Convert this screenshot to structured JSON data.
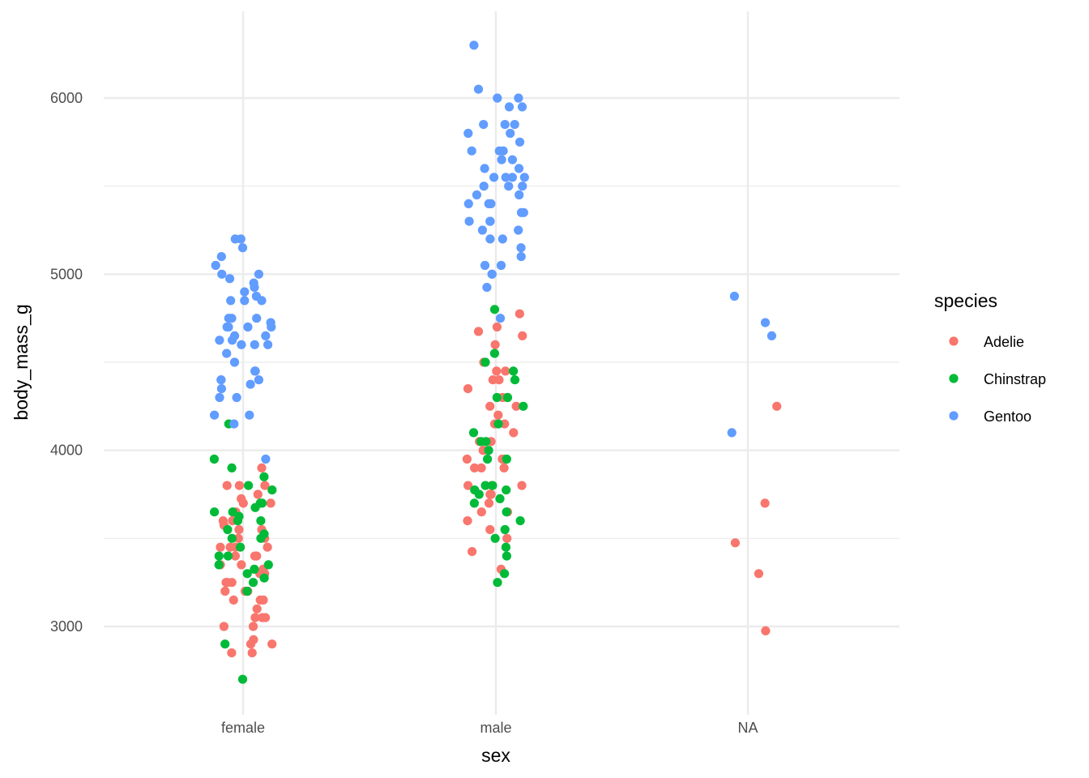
{
  "chart_data": {
    "type": "scatter",
    "xlabel": "sex",
    "ylabel": "body_mass_g",
    "categories": [
      "female",
      "male",
      "NA"
    ],
    "y_ticks": [
      "3000",
      "4000",
      "5000",
      "6000"
    ],
    "ylim": [
      2500,
      6500
    ],
    "grid": true,
    "legend": {
      "title": "species",
      "position": "right",
      "entries": [
        "Adelie",
        "Chinstrap",
        "Gentoo"
      ]
    },
    "colors": {
      "Adelie": "#F8766D",
      "Chinstrap": "#00BA38",
      "Gentoo": "#619CFF"
    },
    "jitter_note": "horizontal jitter within each sex category",
    "series": [
      {
        "name": "Adelie",
        "points": [
          [
            "female",
            2850
          ],
          [
            "female",
            2850
          ],
          [
            "female",
            2900
          ],
          [
            "female",
            2900
          ],
          [
            "female",
            2925
          ],
          [
            "female",
            3000
          ],
          [
            "female",
            3000
          ],
          [
            "female",
            3050
          ],
          [
            "female",
            3050
          ],
          [
            "female",
            3050
          ],
          [
            "female",
            3100
          ],
          [
            "female",
            3150
          ],
          [
            "female",
            3150
          ],
          [
            "female",
            3200
          ],
          [
            "female",
            3200
          ],
          [
            "female",
            3250
          ],
          [
            "female",
            3250
          ],
          [
            "female",
            3300
          ],
          [
            "female",
            3300
          ],
          [
            "female",
            3325
          ],
          [
            "female",
            3350
          ],
          [
            "female",
            3350
          ],
          [
            "female",
            3400
          ],
          [
            "female",
            3400
          ],
          [
            "female",
            3450
          ],
          [
            "female",
            3450
          ],
          [
            "female",
            3450
          ],
          [
            "female",
            3500
          ],
          [
            "female",
            3500
          ],
          [
            "female",
            3550
          ],
          [
            "female",
            3550
          ],
          [
            "female",
            3575
          ],
          [
            "female",
            3600
          ],
          [
            "female",
            3600
          ],
          [
            "female",
            3650
          ],
          [
            "female",
            3700
          ],
          [
            "female",
            3700
          ],
          [
            "female",
            3725
          ],
          [
            "female",
            3750
          ],
          [
            "female",
            3800
          ],
          [
            "female",
            3800
          ],
          [
            "female",
            3800
          ],
          [
            "female",
            3900
          ],
          [
            "female",
            3250
          ],
          [
            "female",
            3200
          ],
          [
            "female",
            3150
          ],
          [
            "female",
            3400
          ],
          [
            "female",
            3450
          ],
          [
            "male",
            3325
          ],
          [
            "male",
            3425
          ],
          [
            "male",
            3500
          ],
          [
            "male",
            3550
          ],
          [
            "male",
            3650
          ],
          [
            "male",
            3650
          ],
          [
            "male",
            3700
          ],
          [
            "male",
            3750
          ],
          [
            "male",
            3750
          ],
          [
            "male",
            3800
          ],
          [
            "male",
            3800
          ],
          [
            "male",
            3800
          ],
          [
            "male",
            3900
          ],
          [
            "male",
            3900
          ],
          [
            "male",
            3950
          ],
          [
            "male",
            3950
          ],
          [
            "male",
            4000
          ],
          [
            "male",
            4000
          ],
          [
            "male",
            4050
          ],
          [
            "male",
            4050
          ],
          [
            "male",
            4100
          ],
          [
            "male",
            4150
          ],
          [
            "male",
            4200
          ],
          [
            "male",
            4250
          ],
          [
            "male",
            4300
          ],
          [
            "male",
            4300
          ],
          [
            "male",
            4350
          ],
          [
            "male",
            4400
          ],
          [
            "male",
            4400
          ],
          [
            "male",
            4450
          ],
          [
            "male",
            4450
          ],
          [
            "male",
            4500
          ],
          [
            "male",
            4600
          ],
          [
            "male",
            4650
          ],
          [
            "male",
            4675
          ],
          [
            "male",
            4700
          ],
          [
            "male",
            4775
          ],
          [
            "male",
            3950
          ],
          [
            "male",
            3600
          ],
          [
            "male",
            3900
          ],
          [
            "male",
            4150
          ],
          [
            "male",
            4250
          ],
          [
            "NA",
            2975
          ],
          [
            "NA",
            3300
          ],
          [
            "NA",
            3475
          ],
          [
            "NA",
            3700
          ],
          [
            "NA",
            4250
          ]
        ]
      },
      {
        "name": "Chinstrap",
        "points": [
          [
            "female",
            2700
          ],
          [
            "female",
            2900
          ],
          [
            "female",
            3200
          ],
          [
            "female",
            3250
          ],
          [
            "female",
            3275
          ],
          [
            "female",
            3300
          ],
          [
            "female",
            3325
          ],
          [
            "female",
            3350
          ],
          [
            "female",
            3350
          ],
          [
            "female",
            3400
          ],
          [
            "female",
            3400
          ],
          [
            "female",
            3450
          ],
          [
            "female",
            3500
          ],
          [
            "female",
            3500
          ],
          [
            "female",
            3525
          ],
          [
            "female",
            3550
          ],
          [
            "female",
            3600
          ],
          [
            "female",
            3600
          ],
          [
            "female",
            3625
          ],
          [
            "female",
            3650
          ],
          [
            "female",
            3650
          ],
          [
            "female",
            3675
          ],
          [
            "female",
            3700
          ],
          [
            "female",
            3700
          ],
          [
            "female",
            3775
          ],
          [
            "female",
            3800
          ],
          [
            "female",
            3850
          ],
          [
            "female",
            3900
          ],
          [
            "female",
            3950
          ],
          [
            "female",
            4150
          ],
          [
            "male",
            3250
          ],
          [
            "male",
            3300
          ],
          [
            "male",
            3400
          ],
          [
            "male",
            3450
          ],
          [
            "male",
            3500
          ],
          [
            "male",
            3550
          ],
          [
            "male",
            3600
          ],
          [
            "male",
            3650
          ],
          [
            "male",
            3700
          ],
          [
            "male",
            3725
          ],
          [
            "male",
            3750
          ],
          [
            "male",
            3775
          ],
          [
            "male",
            3800
          ],
          [
            "male",
            3800
          ],
          [
            "male",
            3950
          ],
          [
            "male",
            3950
          ],
          [
            "male",
            4000
          ],
          [
            "male",
            4050
          ],
          [
            "male",
            4050
          ],
          [
            "male",
            4100
          ],
          [
            "male",
            4150
          ],
          [
            "male",
            4250
          ],
          [
            "male",
            4300
          ],
          [
            "male",
            4300
          ],
          [
            "male",
            4400
          ],
          [
            "male",
            4450
          ],
          [
            "male",
            4500
          ],
          [
            "male",
            4550
          ],
          [
            "male",
            4800
          ],
          [
            "male",
            3775
          ]
        ]
      },
      {
        "name": "Gentoo",
        "points": [
          [
            "female",
            3950
          ],
          [
            "female",
            4150
          ],
          [
            "female",
            4200
          ],
          [
            "female",
            4200
          ],
          [
            "female",
            4300
          ],
          [
            "female",
            4300
          ],
          [
            "female",
            4350
          ],
          [
            "female",
            4400
          ],
          [
            "female",
            4400
          ],
          [
            "female",
            4400
          ],
          [
            "female",
            4450
          ],
          [
            "female",
            4450
          ],
          [
            "female",
            4500
          ],
          [
            "female",
            4550
          ],
          [
            "female",
            4600
          ],
          [
            "female",
            4600
          ],
          [
            "female",
            4625
          ],
          [
            "female",
            4625
          ],
          [
            "female",
            4650
          ],
          [
            "female",
            4650
          ],
          [
            "female",
            4700
          ],
          [
            "female",
            4700
          ],
          [
            "female",
            4700
          ],
          [
            "female",
            4700
          ],
          [
            "female",
            4725
          ],
          [
            "female",
            4750
          ],
          [
            "female",
            4750
          ],
          [
            "female",
            4750
          ],
          [
            "female",
            4850
          ],
          [
            "female",
            4850
          ],
          [
            "female",
            4850
          ],
          [
            "female",
            4875
          ],
          [
            "female",
            4900
          ],
          [
            "female",
            4925
          ],
          [
            "female",
            4950
          ],
          [
            "female",
            4975
          ],
          [
            "female",
            5000
          ],
          [
            "female",
            5000
          ],
          [
            "female",
            5050
          ],
          [
            "female",
            5100
          ],
          [
            "female",
            5150
          ],
          [
            "female",
            5200
          ],
          [
            "female",
            5200
          ],
          [
            "female",
            4600
          ],
          [
            "female",
            4375
          ],
          [
            "male",
            4750
          ],
          [
            "male",
            4925
          ],
          [
            "male",
            5000
          ],
          [
            "male",
            5000
          ],
          [
            "male",
            5050
          ],
          [
            "male",
            5050
          ],
          [
            "male",
            5100
          ],
          [
            "male",
            5150
          ],
          [
            "male",
            5200
          ],
          [
            "male",
            5200
          ],
          [
            "male",
            5250
          ],
          [
            "male",
            5250
          ],
          [
            "male",
            5300
          ],
          [
            "male",
            5300
          ],
          [
            "male",
            5300
          ],
          [
            "male",
            5350
          ],
          [
            "male",
            5350
          ],
          [
            "male",
            5400
          ],
          [
            "male",
            5400
          ],
          [
            "male",
            5400
          ],
          [
            "male",
            5450
          ],
          [
            "male",
            5450
          ],
          [
            "male",
            5500
          ],
          [
            "male",
            5500
          ],
          [
            "male",
            5500
          ],
          [
            "male",
            5550
          ],
          [
            "male",
            5550
          ],
          [
            "male",
            5550
          ],
          [
            "male",
            5550
          ],
          [
            "male",
            5600
          ],
          [
            "male",
            5600
          ],
          [
            "male",
            5650
          ],
          [
            "male",
            5650
          ],
          [
            "male",
            5700
          ],
          [
            "male",
            5700
          ],
          [
            "male",
            5700
          ],
          [
            "male",
            5750
          ],
          [
            "male",
            5800
          ],
          [
            "male",
            5800
          ],
          [
            "male",
            5850
          ],
          [
            "male",
            5850
          ],
          [
            "male",
            5850
          ],
          [
            "male",
            5950
          ],
          [
            "male",
            5950
          ],
          [
            "male",
            6000
          ],
          [
            "male",
            6000
          ],
          [
            "male",
            6050
          ],
          [
            "male",
            6300
          ],
          [
            "NA",
            4100
          ],
          [
            "NA",
            4650
          ],
          [
            "NA",
            4725
          ],
          [
            "NA",
            4875
          ]
        ]
      }
    ]
  }
}
